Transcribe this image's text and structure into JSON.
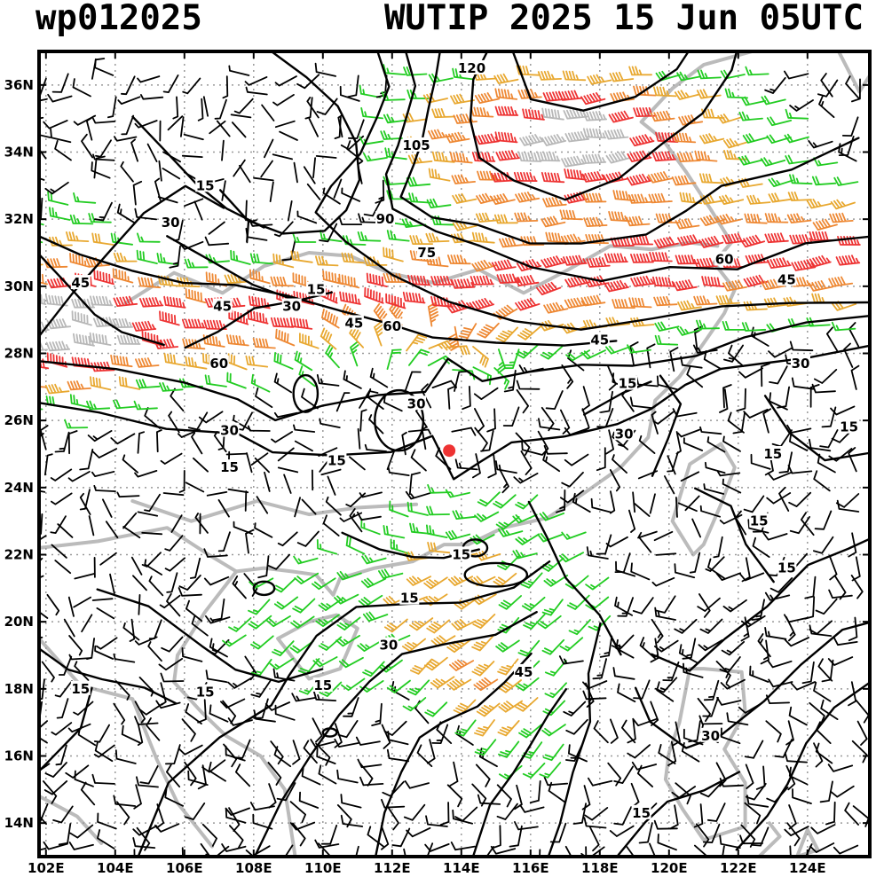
{
  "header": {
    "left_title": "wp012025",
    "right_title": "WUTIP 2025 15 Jun 05UTC"
  },
  "axes": {
    "lon_labels": [
      "102E",
      "104E",
      "106E",
      "108E",
      "110E",
      "112E",
      "114E",
      "116E",
      "118E",
      "120E",
      "122E",
      "124E"
    ],
    "lat_labels": [
      "14N",
      "16N",
      "18N",
      "20N",
      "22N",
      "24N",
      "26N",
      "28N",
      "30N",
      "32N",
      "34N",
      "36N"
    ],
    "lon_range": [
      101.8,
      125.8
    ],
    "lat_range": [
      13.0,
      37.0
    ],
    "grid": "dotted"
  },
  "storm": {
    "lon": 113.65,
    "lat": 25.1,
    "color": "#ee3333"
  },
  "colors": {
    "lt15": "#000000",
    "15to30": "#22cc22",
    "30to45": "#e8a830",
    "45to60": "#ee8833",
    "60to75": "#ee3333",
    "gt75": "#b8b8b8",
    "coast": "#bbbbbb",
    "contour": "#000000"
  },
  "contour_labels": [
    {
      "text": "120",
      "lon": 114.3,
      "lat": 36.5
    },
    {
      "text": "105",
      "lon": 112.7,
      "lat": 34.2
    },
    {
      "text": "90",
      "lon": 111.8,
      "lat": 32.0
    },
    {
      "text": "75",
      "lon": 113.0,
      "lat": 31.0
    },
    {
      "text": "60",
      "lon": 121.6,
      "lat": 30.8
    },
    {
      "text": "45",
      "lon": 123.4,
      "lat": 30.2
    },
    {
      "text": "45",
      "lon": 103.0,
      "lat": 30.1
    },
    {
      "text": "15",
      "lon": 106.6,
      "lat": 33.0
    },
    {
      "text": "30",
      "lon": 105.6,
      "lat": 31.9
    },
    {
      "text": "45",
      "lon": 107.1,
      "lat": 29.4
    },
    {
      "text": "15",
      "lon": 109.8,
      "lat": 29.9
    },
    {
      "text": "30",
      "lon": 109.1,
      "lat": 29.4
    },
    {
      "text": "60",
      "lon": 107.0,
      "lat": 27.7
    },
    {
      "text": "45",
      "lon": 110.9,
      "lat": 28.9
    },
    {
      "text": "60",
      "lon": 112.0,
      "lat": 28.8
    },
    {
      "text": "45",
      "lon": 118.0,
      "lat": 28.4
    },
    {
      "text": "30",
      "lon": 123.8,
      "lat": 27.7
    },
    {
      "text": "30",
      "lon": 112.7,
      "lat": 26.5
    },
    {
      "text": "15",
      "lon": 118.8,
      "lat": 27.1
    },
    {
      "text": "30",
      "lon": 107.3,
      "lat": 25.7
    },
    {
      "text": "15",
      "lon": 107.3,
      "lat": 24.6
    },
    {
      "text": "15",
      "lon": 110.4,
      "lat": 24.8
    },
    {
      "text": "30",
      "lon": 118.7,
      "lat": 25.6
    },
    {
      "text": "15",
      "lon": 123.0,
      "lat": 25.0
    },
    {
      "text": "15",
      "lon": 125.2,
      "lat": 25.8
    },
    {
      "text": "15",
      "lon": 122.6,
      "lat": 23.0
    },
    {
      "text": "15",
      "lon": 114.0,
      "lat": 22.0
    },
    {
      "text": "15",
      "lon": 123.4,
      "lat": 21.6
    },
    {
      "text": "15",
      "lon": 112.5,
      "lat": 20.7
    },
    {
      "text": "30",
      "lon": 111.9,
      "lat": 19.3
    },
    {
      "text": "45",
      "lon": 115.8,
      "lat": 18.5
    },
    {
      "text": "15",
      "lon": 103.0,
      "lat": 18.0
    },
    {
      "text": "15",
      "lon": 106.6,
      "lat": 17.9
    },
    {
      "text": "15",
      "lon": 110.0,
      "lat": 18.1
    },
    {
      "text": "30",
      "lon": 121.2,
      "lat": 16.6
    },
    {
      "text": "15",
      "lon": 119.2,
      "lat": 14.3
    }
  ]
}
